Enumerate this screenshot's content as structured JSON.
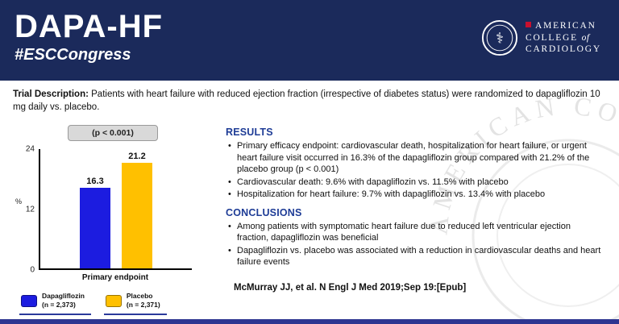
{
  "header": {
    "title": "DAPA-HF",
    "subtitle": "#ESCCongress",
    "logo": {
      "line1": "American",
      "line2": "College",
      "line2_of": "of",
      "line3": "Cardiology"
    }
  },
  "watermark": {
    "text": "AMERICAN COLLEGE OF"
  },
  "trial_description": {
    "label": "Trial Description:",
    "text": " Patients with heart failure with reduced ejection fraction (irrespective of diabetes status) were randomized to dapagliflozin 10 mg daily vs. placebo."
  },
  "chart": {
    "p_value": "(p < 0.001)",
    "y_ticks": [
      "24",
      "12",
      "0"
    ],
    "y_label": "%",
    "x_label": "Primary endpoint",
    "ymax": 24,
    "bars": [
      {
        "label": "Dapagliflozin",
        "value": 16.3,
        "display": "16.3",
        "color": "#1c1ce0"
      },
      {
        "label": "Placebo",
        "value": 21.2,
        "display": "21.2",
        "color": "#ffc000"
      }
    ],
    "legend": [
      {
        "name": "Dapagliflozin",
        "n": "(n = 2,373)",
        "color": "#1c1ce0"
      },
      {
        "name": "Placebo",
        "n": "(n = 2,371)",
        "color": "#ffc000"
      }
    ]
  },
  "chart_data": {
    "type": "bar",
    "categories": [
      "Dapagliflozin (n = 2,373)",
      "Placebo (n = 2,371)"
    ],
    "values": [
      16.3,
      21.2
    ],
    "title": "Primary endpoint",
    "xlabel": "Primary endpoint",
    "ylabel": "%",
    "ylim": [
      0,
      24
    ],
    "yticks": [
      0,
      12,
      24
    ],
    "bar_colors": [
      "#1c1ce0",
      "#ffc000"
    ],
    "annotation": "(p < 0.001)",
    "legend_position": "bottom"
  },
  "results": {
    "heading": "RESULTS",
    "bullets": [
      "Primary efficacy endpoint: cardiovascular death, hospitalization for heart failure, or urgent heart failure visit occurred in 16.3% of the dapagliflozin group compared with 21.2% of the placebo group (p < 0.001)",
      "Cardiovascular death: 9.6% with dapagliflozin vs. 11.5% with placebo",
      "Hospitalization for heart failure: 9.7% with dapagliflozin vs. 13.4% with placebo"
    ]
  },
  "conclusions": {
    "heading": "CONCLUSIONS",
    "bullets": [
      "Among patients with symptomatic heart failure due to reduced left ventricular ejection fraction, dapagliflozin was beneficial",
      "Dapagliflozin vs. placebo was associated with a reduction in cardiovascular deaths and heart failure events"
    ]
  },
  "citation": "McMurray JJ, et al. N Engl J Med 2019;Sep 19:[Epub]"
}
